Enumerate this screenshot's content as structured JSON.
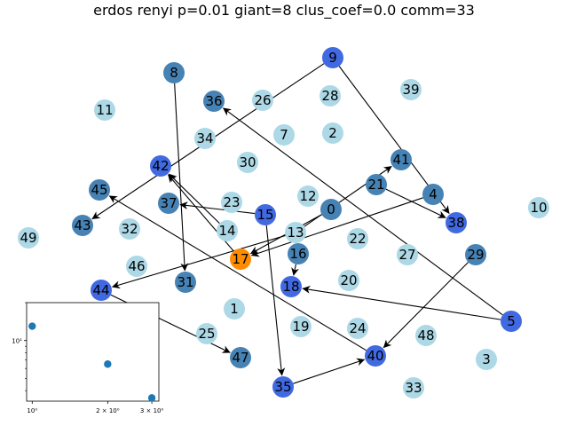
{
  "title": "erdos renyi p=0.01 giant=8 clus_coef=0.0 comm=33",
  "colors": {
    "light": "#add8e6",
    "steel": "#4682b4",
    "royal": "#4169e1",
    "orange": "#ff8c00",
    "edge": "#000000"
  },
  "graph": {
    "nodes": [
      {
        "id": "0",
        "color": "steel"
      },
      {
        "id": "1",
        "color": "light"
      },
      {
        "id": "2",
        "color": "light"
      },
      {
        "id": "3",
        "color": "light"
      },
      {
        "id": "4",
        "color": "steel"
      },
      {
        "id": "5",
        "color": "royal"
      },
      {
        "id": "7",
        "color": "light"
      },
      {
        "id": "8",
        "color": "steel"
      },
      {
        "id": "9",
        "color": "royal"
      },
      {
        "id": "10",
        "color": "light"
      },
      {
        "id": "11",
        "color": "light"
      },
      {
        "id": "12",
        "color": "light"
      },
      {
        "id": "13",
        "color": "light"
      },
      {
        "id": "14",
        "color": "light"
      },
      {
        "id": "15",
        "color": "royal"
      },
      {
        "id": "16",
        "color": "steel"
      },
      {
        "id": "17",
        "color": "orange"
      },
      {
        "id": "18",
        "color": "royal"
      },
      {
        "id": "19",
        "color": "light"
      },
      {
        "id": "20",
        "color": "light"
      },
      {
        "id": "21",
        "color": "steel"
      },
      {
        "id": "22",
        "color": "light"
      },
      {
        "id": "23",
        "color": "light"
      },
      {
        "id": "24",
        "color": "light"
      },
      {
        "id": "25",
        "color": "light"
      },
      {
        "id": "26",
        "color": "light"
      },
      {
        "id": "27",
        "color": "light"
      },
      {
        "id": "28",
        "color": "light"
      },
      {
        "id": "29",
        "color": "steel"
      },
      {
        "id": "30",
        "color": "light"
      },
      {
        "id": "31",
        "color": "steel"
      },
      {
        "id": "32",
        "color": "light"
      },
      {
        "id": "33",
        "color": "light"
      },
      {
        "id": "34",
        "color": "light"
      },
      {
        "id": "35",
        "color": "royal"
      },
      {
        "id": "36",
        "color": "steel"
      },
      {
        "id": "37",
        "color": "steel"
      },
      {
        "id": "38",
        "color": "royal"
      },
      {
        "id": "39",
        "color": "light"
      },
      {
        "id": "40",
        "color": "royal"
      },
      {
        "id": "41",
        "color": "steel"
      },
      {
        "id": "42",
        "color": "royal"
      },
      {
        "id": "43",
        "color": "steel"
      },
      {
        "id": "44",
        "color": "royal"
      },
      {
        "id": "45",
        "color": "steel"
      },
      {
        "id": "46",
        "color": "light"
      },
      {
        "id": "47",
        "color": "steel"
      },
      {
        "id": "48",
        "color": "light"
      },
      {
        "id": "49",
        "color": "light"
      }
    ],
    "edges": [
      {
        "from": "8",
        "to": "31"
      },
      {
        "from": "9",
        "to": "43"
      },
      {
        "from": "9",
        "to": "38"
      },
      {
        "from": "5",
        "to": "36"
      },
      {
        "from": "5",
        "to": "18"
      },
      {
        "from": "14",
        "to": "42"
      },
      {
        "from": "17",
        "to": "42"
      },
      {
        "from": "15",
        "to": "37"
      },
      {
        "from": "15",
        "to": "35"
      },
      {
        "from": "0",
        "to": "17"
      },
      {
        "from": "13",
        "to": "41"
      },
      {
        "from": "13",
        "to": "44"
      },
      {
        "from": "4",
        "to": "17"
      },
      {
        "from": "21",
        "to": "38"
      },
      {
        "from": "16",
        "to": "18"
      },
      {
        "from": "40",
        "to": "45"
      },
      {
        "from": "29",
        "to": "40"
      },
      {
        "from": "35",
        "to": "40"
      },
      {
        "from": "44",
        "to": "47"
      }
    ]
  },
  "inset": {
    "chart_data": {
      "type": "scatter",
      "xscale": "log",
      "yscale": "log",
      "x": [
        1,
        2,
        3
      ],
      "y": [
        13,
        6.5,
        3.5
      ],
      "xticks": [
        {
          "value": 1,
          "label": "10⁰"
        },
        {
          "value": 2,
          "label": "2 × 10⁰"
        },
        {
          "value": 3,
          "label": "3 × 10⁰"
        }
      ],
      "yticks": [
        {
          "value": 10,
          "label": "10¹"
        }
      ],
      "xlim": [
        0.95,
        3.2
      ],
      "ylim": [
        3.3,
        20
      ],
      "point_color": "#1f77b4"
    }
  }
}
